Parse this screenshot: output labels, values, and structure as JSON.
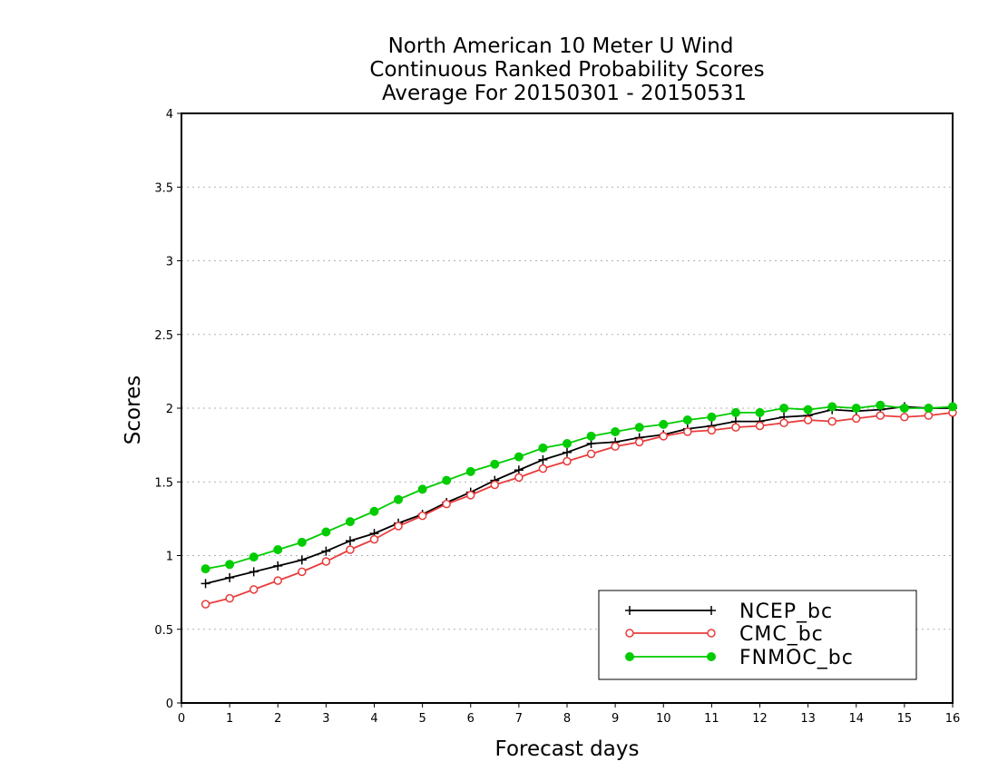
{
  "chart_data": {
    "type": "line",
    "title_lines": [
      "North American 10 Meter U Wind",
      "Continuous Ranked Probability Scores",
      "Average For 20150301 - 20150531"
    ],
    "xlabel": "Forecast days",
    "ylabel": "Scores",
    "xlim": [
      0,
      16
    ],
    "ylim": [
      0,
      4
    ],
    "x_ticks": [
      "0",
      "1",
      "2",
      "3",
      "4",
      "5",
      "6",
      "7",
      "8",
      "9",
      "10",
      "11",
      "12",
      "13",
      "14",
      "15",
      "16"
    ],
    "y_ticks": [
      "0",
      "0.5",
      "1",
      "1.5",
      "2",
      "2.5",
      "3",
      "3.5",
      "4"
    ],
    "grid": "horizontal dotted",
    "legend_position": "bottom-right",
    "x": [
      0.5,
      1,
      1.5,
      2,
      2.5,
      3,
      3.5,
      4,
      4.5,
      5,
      5.5,
      6,
      6.5,
      7,
      7.5,
      8,
      8.5,
      9,
      9.5,
      10,
      10.5,
      11,
      11.5,
      12,
      12.5,
      13,
      13.5,
      14,
      14.5,
      15,
      15.5,
      16
    ],
    "series": [
      {
        "name": "NCEP_bc",
        "color": "#000000",
        "marker": "plus",
        "values": [
          0.81,
          0.85,
          0.89,
          0.93,
          0.97,
          1.03,
          1.1,
          1.15,
          1.22,
          1.28,
          1.36,
          1.43,
          1.51,
          1.58,
          1.65,
          1.7,
          1.76,
          1.77,
          1.8,
          1.82,
          1.86,
          1.88,
          1.91,
          1.91,
          1.94,
          1.95,
          1.99,
          1.98,
          1.99,
          2.01,
          2.0,
          2.0
        ]
      },
      {
        "name": "CMC_bc",
        "color": "#e83c3c",
        "marker": "open-circle",
        "values": [
          0.67,
          0.71,
          0.77,
          0.83,
          0.89,
          0.96,
          1.04,
          1.11,
          1.2,
          1.27,
          1.35,
          1.41,
          1.48,
          1.53,
          1.59,
          1.64,
          1.69,
          1.74,
          1.77,
          1.81,
          1.84,
          1.85,
          1.87,
          1.88,
          1.9,
          1.92,
          1.91,
          1.93,
          1.95,
          1.94,
          1.95,
          1.97
        ]
      },
      {
        "name": "FNMOC_bc",
        "color": "#00cc00",
        "marker": "filled-circle",
        "values": [
          0.91,
          0.94,
          0.99,
          1.04,
          1.09,
          1.16,
          1.23,
          1.3,
          1.38,
          1.45,
          1.51,
          1.57,
          1.62,
          1.67,
          1.73,
          1.76,
          1.81,
          1.84,
          1.87,
          1.89,
          1.92,
          1.94,
          1.97,
          1.97,
          2.0,
          1.99,
          2.01,
          2.0,
          2.02,
          2.0,
          2.0,
          2.01
        ]
      }
    ]
  }
}
